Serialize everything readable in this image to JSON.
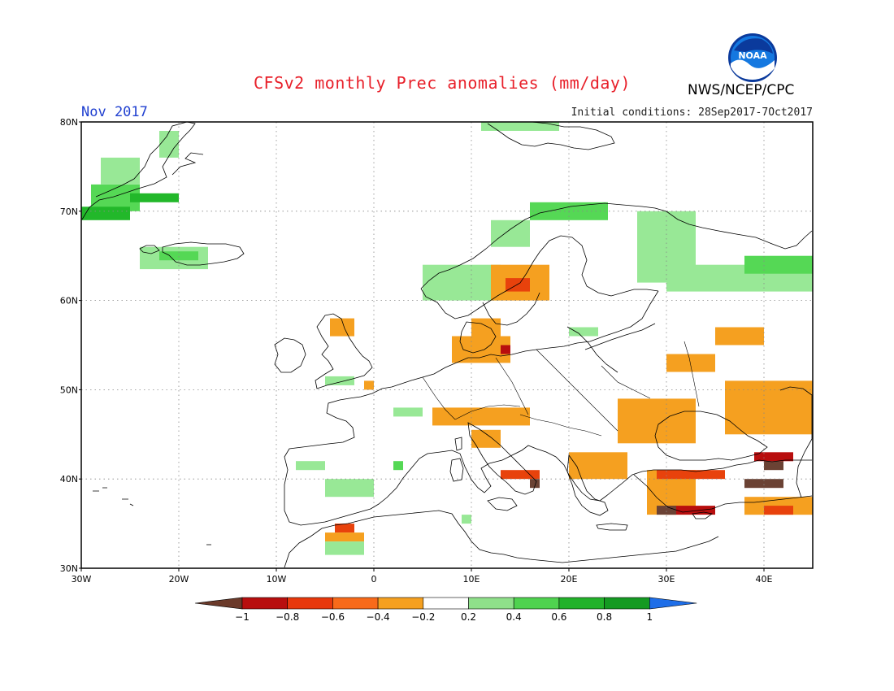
{
  "header": {
    "title": "CFSv2 monthly Prec anomalies (mm/day)",
    "agency": "NWS/NCEP/CPC",
    "month": "Nov 2017",
    "initial_conditions": "Initial conditions: 28Sep2017-7Oct2017",
    "logo_text": "NOAA",
    "logo_icon": "noaa-logo-icon"
  },
  "map": {
    "region": "Europe",
    "lon_range": [
      -30,
      45
    ],
    "lat_range": [
      30,
      80
    ],
    "lat_labels": [
      "30N",
      "40N",
      "50N",
      "60N",
      "70N",
      "80N"
    ],
    "lon_labels": [
      "30W",
      "20W",
      "10W",
      "0",
      "10E",
      "20E",
      "30E",
      "40E"
    ],
    "gridlines": true
  },
  "colorbar": {
    "ticks": [
      "−1",
      "−0.8",
      "−0.6",
      "−0.4",
      "−0.2",
      "0.2",
      "0.4",
      "0.6",
      "0.8",
      "1"
    ],
    "colors": [
      "#6b3a2a",
      "#b80e0e",
      "#e8380c",
      "#f86a1a",
      "#f5a020",
      "#ffffff",
      "#8fe08a",
      "#4fd24f",
      "#22b22a",
      "#149a22",
      "#1e6ee8"
    ]
  },
  "anomaly_colors": {
    "lt_m1": "#6b4234",
    "m08": "#b80e0e",
    "m06": "#e8420c",
    "m04": "#f5a020",
    "p02": "#98e896",
    "p04": "#55d855",
    "p06": "#22b82a",
    "p08": "#139422"
  },
  "chart_data": {
    "type": "heatmap",
    "title": "CFSv2 monthly Prec anomalies (mm/day)",
    "lon_range": [
      -30,
      45
    ],
    "lat_range": [
      30,
      80
    ],
    "cells": [
      {
        "lon": [
          -28,
          -24
        ],
        "lat": [
          73,
          76
        ],
        "class": "p02"
      },
      {
        "lon": [
          -29,
          -24
        ],
        "lat": [
          70,
          73
        ],
        "class": "p04"
      },
      {
        "lon": [
          -30,
          -25
        ],
        "lat": [
          69,
          70.5
        ],
        "class": "p06"
      },
      {
        "lon": [
          -25,
          -20
        ],
        "lat": [
          71,
          72
        ],
        "class": "p06"
      },
      {
        "lon": [
          -22,
          -20
        ],
        "lat": [
          76,
          79
        ],
        "class": "p02"
      },
      {
        "lon": [
          -24,
          -17
        ],
        "lat": [
          63.5,
          66
        ],
        "class": "p02"
      },
      {
        "lon": [
          -22,
          -18
        ],
        "lat": [
          64.5,
          65.5
        ],
        "class": "p04"
      },
      {
        "lon": [
          11,
          19
        ],
        "lat": [
          79,
          80
        ],
        "class": "p02"
      },
      {
        "lon": [
          5,
          13
        ],
        "lat": [
          60,
          64
        ],
        "class": "p02"
      },
      {
        "lon": [
          12,
          16
        ],
        "lat": [
          66,
          69
        ],
        "class": "p02"
      },
      {
        "lon": [
          16,
          24
        ],
        "lat": [
          69,
          71
        ],
        "class": "p04"
      },
      {
        "lon": [
          27,
          33
        ],
        "lat": [
          62,
          70
        ],
        "class": "p02"
      },
      {
        "lon": [
          30,
          45
        ],
        "lat": [
          61,
          64
        ],
        "class": "p02"
      },
      {
        "lon": [
          38,
          45
        ],
        "lat": [
          63,
          65
        ],
        "class": "p04"
      },
      {
        "lon": [
          12,
          18
        ],
        "lat": [
          60,
          64
        ],
        "class": "m04"
      },
      {
        "lon": [
          13.5,
          16
        ],
        "lat": [
          61,
          62.5
        ],
        "class": "m06"
      },
      {
        "lon": [
          10,
          13
        ],
        "lat": [
          56,
          58
        ],
        "class": "m04"
      },
      {
        "lon": [
          8,
          14
        ],
        "lat": [
          53,
          56
        ],
        "class": "m04"
      },
      {
        "lon": [
          13,
          14
        ],
        "lat": [
          54,
          55
        ],
        "class": "m08"
      },
      {
        "lon": [
          -4.5,
          -2
        ],
        "lat": [
          56,
          58
        ],
        "class": "m04"
      },
      {
        "lon": [
          -1,
          0
        ],
        "lat": [
          50,
          51
        ],
        "class": "m04"
      },
      {
        "lon": [
          6,
          16
        ],
        "lat": [
          46,
          48
        ],
        "class": "m04"
      },
      {
        "lon": [
          10,
          13
        ],
        "lat": [
          43.5,
          45.5
        ],
        "class": "m04"
      },
      {
        "lon": [
          25,
          33
        ],
        "lat": [
          44,
          49
        ],
        "class": "m04"
      },
      {
        "lon": [
          30,
          35
        ],
        "lat": [
          52,
          54
        ],
        "class": "m04"
      },
      {
        "lon": [
          35,
          40
        ],
        "lat": [
          55,
          57
        ],
        "class": "m04"
      },
      {
        "lon": [
          36,
          45
        ],
        "lat": [
          45,
          51
        ],
        "class": "m04"
      },
      {
        "lon": [
          20,
          26
        ],
        "lat": [
          40,
          43
        ],
        "class": "m04"
      },
      {
        "lon": [
          28,
          33
        ],
        "lat": [
          36,
          41
        ],
        "class": "m04"
      },
      {
        "lon": [
          13,
          17
        ],
        "lat": [
          40,
          41
        ],
        "class": "m06"
      },
      {
        "lon": [
          16,
          17
        ],
        "lat": [
          39,
          40
        ],
        "class": "lt_m1"
      },
      {
        "lon": [
          29,
          36
        ],
        "lat": [
          40,
          41
        ],
        "class": "m06"
      },
      {
        "lon": [
          30,
          35
        ],
        "lat": [
          36,
          37
        ],
        "class": "m08"
      },
      {
        "lon": [
          29,
          31
        ],
        "lat": [
          36,
          37
        ],
        "class": "lt_m1"
      },
      {
        "lon": [
          38,
          42
        ],
        "lat": [
          39,
          40
        ],
        "class": "lt_m1"
      },
      {
        "lon": [
          40,
          42
        ],
        "lat": [
          41,
          42
        ],
        "class": "lt_m1"
      },
      {
        "lon": [
          39,
          43
        ],
        "lat": [
          42,
          43
        ],
        "class": "m08"
      },
      {
        "lon": [
          38,
          45
        ],
        "lat": [
          36,
          38
        ],
        "class": "m04"
      },
      {
        "lon": [
          40,
          43
        ],
        "lat": [
          36,
          37
        ],
        "class": "m06"
      },
      {
        "lon": [
          -4,
          -2
        ],
        "lat": [
          34,
          35
        ],
        "class": "m06"
      },
      {
        "lon": [
          -5,
          -1
        ],
        "lat": [
          33,
          34
        ],
        "class": "m04"
      },
      {
        "lon": [
          -5,
          0
        ],
        "lat": [
          38,
          40
        ],
        "class": "p02"
      },
      {
        "lon": [
          -8,
          -5
        ],
        "lat": [
          41,
          42
        ],
        "class": "p02"
      },
      {
        "lon": [
          -5,
          -1
        ],
        "lat": [
          31.5,
          33
        ],
        "class": "p02"
      },
      {
        "lon": [
          2,
          3
        ],
        "lat": [
          41,
          42
        ],
        "class": "p04"
      },
      {
        "lon": [
          2,
          5
        ],
        "lat": [
          47,
          48
        ],
        "class": "p02"
      },
      {
        "lon": [
          -5,
          -2
        ],
        "lat": [
          50.5,
          51.5
        ],
        "class": "p02"
      },
      {
        "lon": [
          20,
          23
        ],
        "lat": [
          56,
          57
        ],
        "class": "p02"
      },
      {
        "lon": [
          9,
          10
        ],
        "lat": [
          35,
          36
        ],
        "class": "p02"
      }
    ]
  }
}
